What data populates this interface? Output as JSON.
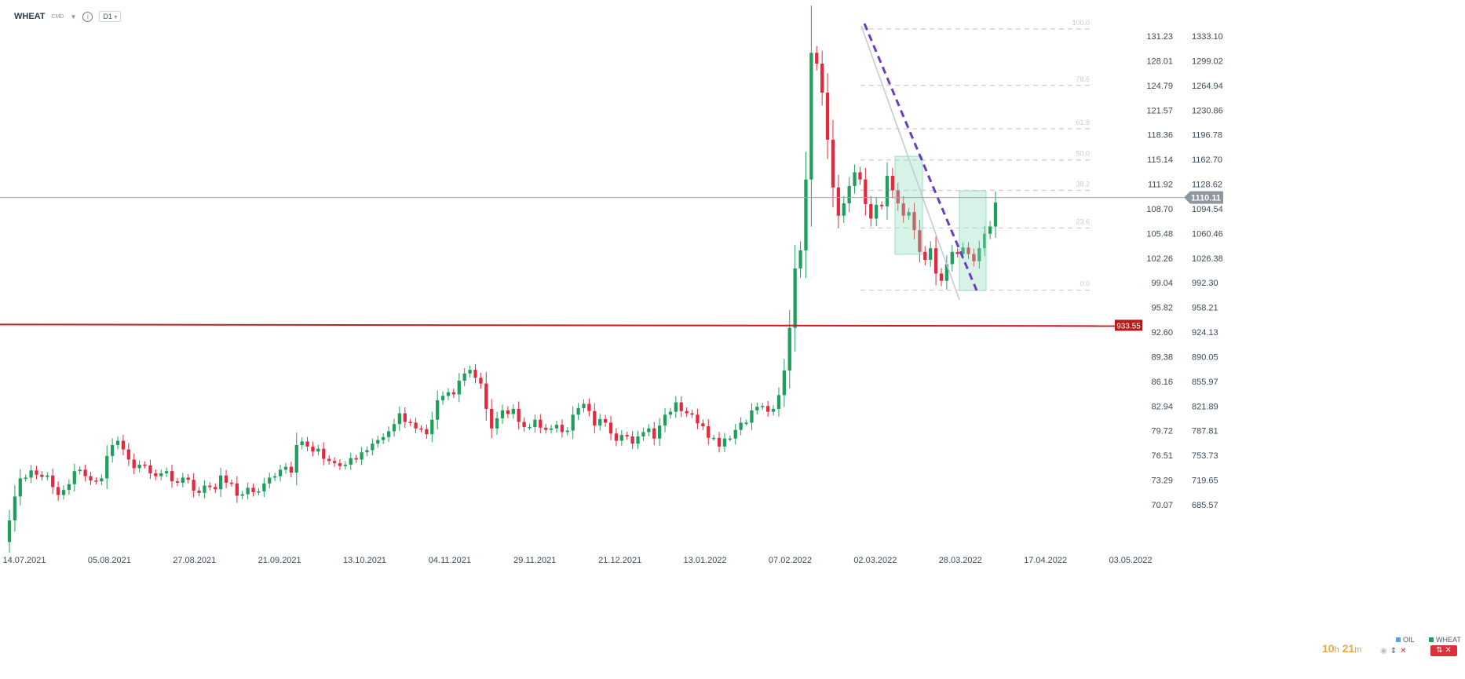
{
  "header": {
    "symbol": "WHEAT",
    "source": "CMD",
    "info_icon": "info-icon",
    "timeframe": "D1"
  },
  "legend": [
    {
      "label": "OIL",
      "color": "#4fa3e0"
    },
    {
      "label": "WHEAT",
      "color": "#1e9f5b"
    }
  ],
  "timer": {
    "hours": "10",
    "h": "h",
    "minutes": "21",
    "m": "m"
  },
  "colors": {
    "up": "#1e9f5b",
    "down": "#e2293d",
    "support": "#c81e1e",
    "trend": "#6a3dbd"
  },
  "chart_data": {
    "type": "candlestick",
    "x_labels": [
      "14.07.2021",
      "05.08.2021",
      "27.08.2021",
      "21.09.2021",
      "13.10.2021",
      "04.11.2021",
      "29.11.2021",
      "21.12.2021",
      "13.01.2022",
      "07.02.2022",
      "02.03.2022",
      "28.03.2022",
      "17.04.2022",
      "03.05.2022"
    ],
    "y_left_ticks": [
      "131.23",
      "128.01",
      "124.79",
      "121.57",
      "118.36",
      "115.14",
      "111.92",
      "108.70",
      "105.48",
      "102.26",
      "99.04",
      "95.82",
      "92.60",
      "89.38",
      "86.16",
      "82.94",
      "79.72",
      "76.51",
      "73.29",
      "70.07"
    ],
    "y_right_ticks": [
      "1333.10",
      "1299.02",
      "1264.94",
      "1230.86",
      "1196.78",
      "1162.70",
      "1128.62",
      "1094.54",
      "1060.46",
      "1026.38",
      "992.30",
      "958.21",
      "924.13",
      "890.05",
      "855.97",
      "821.89",
      "787.81",
      "753.73",
      "719.65",
      "685.57"
    ],
    "current_price": "1110.11",
    "support_level": "933.55",
    "fibonacci": [
      "100.0",
      "78.6",
      "61.8",
      "50.0",
      "38.2",
      "23.6",
      "0.0"
    ],
    "fib_prices": [
      1343,
      1265,
      1205,
      1162,
      1120,
      1068,
      982
    ],
    "close": [
      664,
      697,
      722,
      723,
      733,
      727,
      724,
      726,
      710,
      699,
      706,
      714,
      732,
      734,
      725,
      719,
      718,
      722,
      753,
      768,
      774,
      762,
      748,
      736,
      741,
      740,
      729,
      725,
      729,
      732,
      718,
      716,
      723,
      720,
      705,
      702,
      712,
      710,
      707,
      726,
      716,
      715,
      698,
      700,
      709,
      703,
      704,
      715,
      723,
      725,
      734,
      738,
      730,
      768,
      773,
      766,
      759,
      763,
      749,
      746,
      743,
      739,
      741,
      750,
      748,
      758,
      761,
      770,
      775,
      779,
      787,
      797,
      812,
      800,
      799,
      791,
      790,
      783,
      803,
      830,
      836,
      841,
      838,
      857,
      867,
      872,
      861,
      853,
      818,
      791,
      805,
      816,
      811,
      818,
      800,
      793,
      793,
      803,
      792,
      789,
      791,
      796,
      786,
      788,
      810,
      819,
      825,
      815,
      795,
      804,
      799,
      784,
      774,
      782,
      780,
      770,
      780,
      786,
      791,
      777,
      795,
      810,
      814,
      827,
      815,
      812,
      810,
      798,
      794,
      778,
      778,
      766,
      777,
      777,
      789,
      799,
      799,
      816,
      821,
      822,
      814,
      818,
      837,
      871,
      930,
      1012,
      1037,
      1135,
      1310,
      1295,
      1255,
      1190,
      1124,
      1085,
      1102,
      1126,
      1145,
      1135,
      1101,
      1081,
      1100,
      1098,
      1140,
      1120,
      1102,
      1085,
      1090,
      1065,
      1035,
      1024,
      1040,
      1005,
      995,
      1018,
      1035,
      1032,
      1041,
      1032,
      1022,
      1040,
      1060,
      1070,
      1103
    ]
  }
}
